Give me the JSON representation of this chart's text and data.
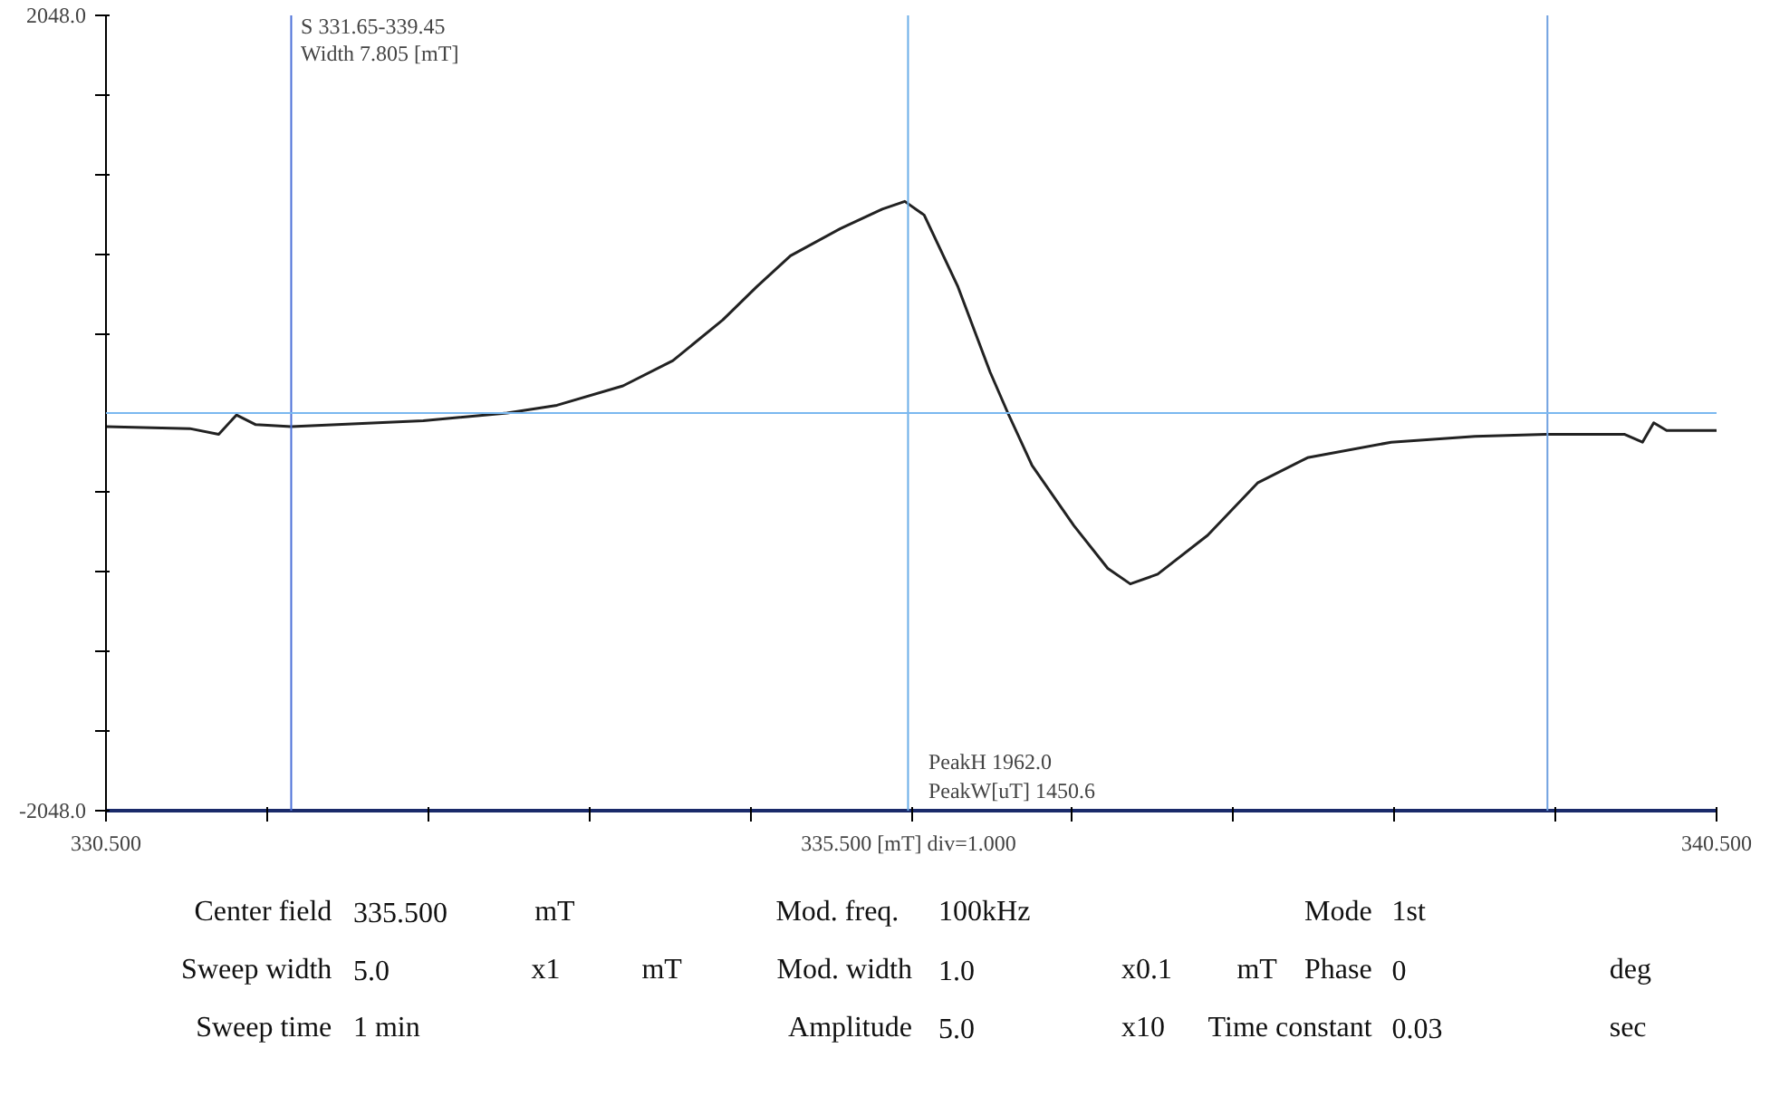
{
  "chart_data": {
    "type": "line",
    "x": [
      330.5,
      331.02,
      331.2,
      331.31,
      331.43,
      331.65,
      332.47,
      332.99,
      333.3,
      333.71,
      334.02,
      334.33,
      334.54,
      334.75,
      335.06,
      335.32,
      335.46,
      335.58,
      335.79,
      335.99,
      336.1,
      336.25,
      336.51,
      336.72,
      336.86,
      337.03,
      337.34,
      337.65,
      337.96,
      338.48,
      339.0,
      339.44,
      339.93,
      340.04,
      340.11,
      340.19,
      340.5
    ],
    "series": [
      {
        "color": "#222222",
        "values": [
          -70,
          -80,
          -110,
          -10,
          -60,
          -70,
          -40,
          0,
          40,
          140,
          270,
          480,
          650,
          810,
          950,
          1050,
          1090,
          1020,
          650,
          210,
          0,
          -270,
          -580,
          -800,
          -880,
          -830,
          -630,
          -360,
          -230,
          -150,
          -120,
          -110,
          -110,
          -150,
          -50,
          -90,
          -90
        ]
      }
    ],
    "xlim": [
      330.5,
      340.5
    ],
    "xticks": [
      {
        "value": 330.5,
        "label": "330.500"
      },
      {
        "value": 331.5,
        "label": null
      },
      {
        "value": 332.5,
        "label": null
      },
      {
        "value": 333.5,
        "label": null
      },
      {
        "value": 334.5,
        "label": null
      },
      {
        "value": 335.5,
        "label": "335.500 [mT]  div=1.000"
      },
      {
        "value": 336.5,
        "label": null
      },
      {
        "value": 337.5,
        "label": null
      },
      {
        "value": 338.5,
        "label": null
      },
      {
        "value": 339.5,
        "label": null
      },
      {
        "value": 340.5,
        "label": "340.500"
      }
    ],
    "ylim": [
      -2048,
      2048
    ],
    "yticks": [
      {
        "value": -2048,
        "label": "-2048.0"
      },
      {
        "value": -1638.4,
        "label": null
      },
      {
        "value": -1228.8,
        "label": null
      },
      {
        "value": -819.2,
        "label": null
      },
      {
        "value": -409.6,
        "label": null
      },
      {
        "value": 409.6,
        "label": null
      },
      {
        "value": 819.2,
        "label": null
      },
      {
        "value": 1228.8,
        "label": null
      },
      {
        "value": 1638.4,
        "label": null
      },
      {
        "value": 2048,
        "label": "2048.0"
      }
    ],
    "ref_lines": [
      {
        "axis": "x",
        "value": 331.65,
        "color": "#4a6fd8"
      },
      {
        "axis": "x",
        "value": 339.45,
        "color": "#6fa0e0"
      },
      {
        "axis": "x",
        "value": 335.48,
        "color": "#6aaee8"
      },
      {
        "axis": "y",
        "value": 0,
        "color": "#7ab8f0"
      }
    ],
    "grid": false,
    "marker": "none",
    "line_style": "solid",
    "annotations": [
      "S  331.65-339.45",
      "Width 7.805   [mT]",
      "PeakH 1962.0",
      "PeakW[uT] 1450.6",
      "Center field",
      "335.500",
      "mT",
      "Mod. freq.",
      "100kHz",
      "Mode",
      "1st",
      "Sweep width",
      "5.0",
      "x1",
      "mT",
      "Mod. width",
      "1.0",
      "x0.1",
      "mT",
      "Phase",
      "0",
      "deg",
      "Sweep time",
      "1   min",
      "Amplitude",
      "5.0",
      "x10",
      "Time constant",
      "0.03",
      "sec"
    ]
  }
}
